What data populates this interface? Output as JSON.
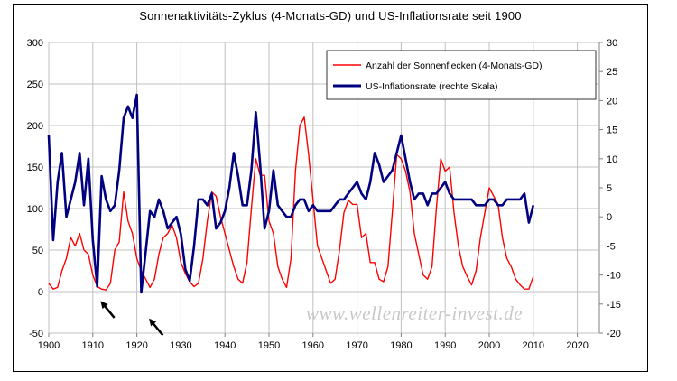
{
  "chart_data": {
    "type": "line",
    "title": "Sonnenaktivitäts-Zyklus (4-Monats-GD) und US-Inflationsrate seit 1900",
    "xlabel": "",
    "ylabel_left": "",
    "ylabel_right": "",
    "xlim": [
      1900,
      2025
    ],
    "ylim_left": [
      -50,
      300
    ],
    "ylim_right": [
      -20,
      30
    ],
    "x_ticks": [
      "1900",
      "1910",
      "1920",
      "1930",
      "1940",
      "1950",
      "1960",
      "1970",
      "1980",
      "1990",
      "2000",
      "2010",
      "2020"
    ],
    "y_ticks_left": [
      "300",
      "250",
      "200",
      "150",
      "100",
      "50",
      "0",
      "-50"
    ],
    "y_ticks_right": [
      "30",
      "25",
      "20",
      "15",
      "10",
      "5",
      "0",
      "-5",
      "-10",
      "-15",
      "-20"
    ],
    "grid": true,
    "legend_position": "top-right",
    "watermark": "www.wellenreiter-invest.de",
    "series": [
      {
        "name": "Anzahl der Sonnenflecken (4-Monats-GD)",
        "axis": "left",
        "color": "#ff0000",
        "x": [
          1900,
          1901,
          1902,
          1903,
          1904,
          1905,
          1906,
          1907,
          1908,
          1909,
          1910,
          1911,
          1912,
          1913,
          1914,
          1915,
          1916,
          1917,
          1918,
          1919,
          1920,
          1921,
          1922,
          1923,
          1924,
          1925,
          1926,
          1927,
          1928,
          1929,
          1930,
          1931,
          1932,
          1933,
          1934,
          1935,
          1936,
          1937,
          1938,
          1939,
          1940,
          1941,
          1942,
          1943,
          1944,
          1945,
          1946,
          1947,
          1948,
          1949,
          1950,
          1951,
          1952,
          1953,
          1954,
          1955,
          1956,
          1957,
          1958,
          1959,
          1960,
          1961,
          1962,
          1963,
          1964,
          1965,
          1966,
          1967,
          1968,
          1969,
          1970,
          1971,
          1972,
          1973,
          1974,
          1975,
          1976,
          1977,
          1978,
          1979,
          1980,
          1981,
          1982,
          1983,
          1984,
          1985,
          1986,
          1987,
          1988,
          1989,
          1990,
          1991,
          1992,
          1993,
          1994,
          1995,
          1996,
          1997,
          1998,
          1999,
          2000,
          2001,
          2002,
          2003,
          2004,
          2005,
          2006,
          2007,
          2008,
          2009,
          2010
        ],
        "values": [
          10,
          3,
          5,
          25,
          40,
          65,
          55,
          70,
          50,
          45,
          20,
          6,
          3,
          2,
          10,
          50,
          60,
          120,
          85,
          70,
          40,
          25,
          15,
          5,
          15,
          45,
          65,
          70,
          80,
          65,
          35,
          22,
          12,
          6,
          10,
          40,
          85,
          120,
          115,
          90,
          70,
          50,
          30,
          15,
          10,
          35,
          100,
          160,
          140,
          140,
          85,
          70,
          30,
          15,
          5,
          40,
          145,
          200,
          210,
          165,
          110,
          55,
          40,
          25,
          10,
          15,
          50,
          95,
          110,
          105,
          105,
          65,
          70,
          35,
          35,
          15,
          12,
          30,
          95,
          165,
          160,
          145,
          120,
          70,
          45,
          20,
          15,
          30,
          100,
          160,
          145,
          150,
          95,
          55,
          30,
          18,
          8,
          25,
          65,
          95,
          125,
          115,
          105,
          65,
          40,
          30,
          15,
          8,
          3,
          3,
          18
        ]
      },
      {
        "name": "US-Inflationsrate (rechte Skala)",
        "axis": "right",
        "color": "#000080",
        "x": [
          1900,
          1901,
          1902,
          1903,
          1904,
          1905,
          1906,
          1907,
          1908,
          1909,
          1910,
          1911,
          1912,
          1913,
          1914,
          1915,
          1916,
          1917,
          1918,
          1919,
          1920,
          1921,
          1922,
          1923,
          1924,
          1925,
          1926,
          1927,
          1928,
          1929,
          1930,
          1931,
          1932,
          1933,
          1934,
          1935,
          1936,
          1937,
          1938,
          1939,
          1940,
          1941,
          1942,
          1943,
          1944,
          1945,
          1946,
          1947,
          1948,
          1949,
          1950,
          1951,
          1952,
          1953,
          1954,
          1955,
          1956,
          1957,
          1958,
          1959,
          1960,
          1961,
          1962,
          1963,
          1964,
          1965,
          1966,
          1967,
          1968,
          1969,
          1970,
          1971,
          1972,
          1973,
          1974,
          1975,
          1976,
          1977,
          1978,
          1979,
          1980,
          1981,
          1982,
          1983,
          1984,
          1985,
          1986,
          1987,
          1988,
          1989,
          1990,
          1991,
          1992,
          1993,
          1994,
          1995,
          1996,
          1997,
          1998,
          1999,
          2000,
          2001,
          2002,
          2003,
          2004,
          2005,
          2006,
          2007,
          2008,
          2009,
          2010
        ],
        "values": [
          14,
          -4,
          6,
          11,
          0,
          3,
          6,
          11,
          2,
          10,
          -4,
          -12,
          7,
          3,
          1,
          2,
          8,
          17,
          19,
          17,
          21,
          -13,
          -6,
          1,
          0,
          3,
          1,
          -2,
          -1,
          0,
          -3,
          -9,
          -11,
          -5,
          3,
          3,
          2,
          4,
          -2,
          -1,
          1,
          5,
          11,
          7,
          2,
          2,
          8,
          18,
          9,
          -2,
          1,
          8,
          2,
          1,
          0,
          0,
          2,
          3,
          3,
          1,
          2,
          1,
          1,
          1,
          1,
          2,
          3,
          3,
          4,
          5,
          6,
          4,
          3,
          6,
          11,
          9,
          6,
          7,
          8,
          11,
          14,
          10,
          6,
          3,
          4,
          4,
          2,
          4,
          4,
          5,
          6,
          4,
          3,
          3,
          3,
          3,
          3,
          2,
          2,
          2,
          3,
          3,
          2,
          2,
          3,
          3,
          3,
          3,
          4,
          -1,
          2
        ]
      }
    ],
    "annotations": [
      {
        "type": "arrow",
        "target_year": 1911,
        "target_value_right": -13
      },
      {
        "type": "arrow",
        "target_year": 1922,
        "target_value_right": -16
      }
    ]
  }
}
